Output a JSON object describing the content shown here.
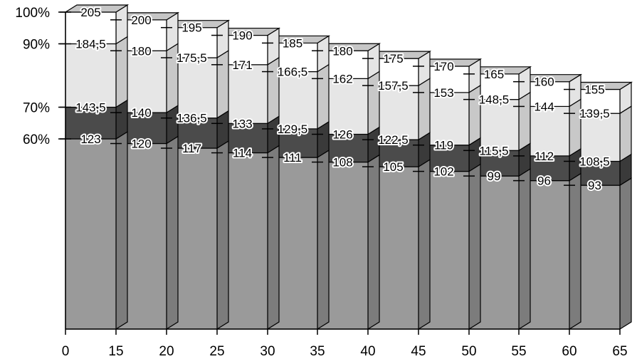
{
  "chart_data": {
    "type": "bar",
    "stacked": true,
    "three_d": true,
    "x_ticks": [
      "0",
      "15",
      "20",
      "25",
      "30",
      "35",
      "40",
      "45",
      "50",
      "55",
      "60",
      "65"
    ],
    "y_ticks": [
      {
        "value": 100,
        "label": "100%"
      },
      {
        "value": 90,
        "label": "90%"
      },
      {
        "value": 70,
        "label": "70%"
      },
      {
        "value": 60,
        "label": "60%"
      }
    ],
    "ylim": [
      0,
      205
    ],
    "categories": [
      "0-15",
      "15-20",
      "20-25",
      "25-30",
      "30-35",
      "35-40",
      "40-45",
      "45-50",
      "50-55",
      "55-60",
      "60-65"
    ],
    "bands": [
      {
        "color": "#9a9a9a",
        "side_color": "#7c7c7c"
      },
      {
        "color": "#4b4b4b",
        "side_color": "#3a3a3a"
      },
      {
        "color": "#e6e6e6",
        "side_color": "#c8c8c8"
      },
      {
        "color": "#ffffff",
        "side_color": "#e4e4e4"
      }
    ],
    "top_color": "#c6c6c6",
    "values": [
      {
        "levels": [
          123,
          143.5,
          184.5,
          205
        ],
        "labels": [
          "123",
          "143,5",
          "184,5",
          "205"
        ]
      },
      {
        "levels": [
          120,
          140,
          180,
          200
        ],
        "labels": [
          "120",
          "140",
          "180",
          "200"
        ]
      },
      {
        "levels": [
          117,
          136.5,
          175.5,
          195
        ],
        "labels": [
          "117",
          "136,5",
          "175,5",
          "195"
        ]
      },
      {
        "levels": [
          114,
          133,
          171,
          190
        ],
        "labels": [
          "114",
          "133",
          "171",
          "190"
        ]
      },
      {
        "levels": [
          111,
          129.5,
          166.5,
          185
        ],
        "labels": [
          "111",
          "129,5",
          "166,5",
          "185"
        ]
      },
      {
        "levels": [
          108,
          126,
          162,
          180
        ],
        "labels": [
          "108",
          "126",
          "162",
          "180"
        ]
      },
      {
        "levels": [
          105,
          122.5,
          157.5,
          175
        ],
        "labels": [
          "105",
          "122,5",
          "157,5",
          "175"
        ]
      },
      {
        "levels": [
          102,
          119,
          153,
          170
        ],
        "labels": [
          "102",
          "119",
          "153",
          "170"
        ]
      },
      {
        "levels": [
          99,
          115.5,
          148.5,
          165
        ],
        "labels": [
          "99",
          "115,5",
          "148,5",
          "165"
        ]
      },
      {
        "levels": [
          96,
          112,
          144,
          160
        ],
        "labels": [
          "96",
          "112",
          "144",
          "160"
        ]
      },
      {
        "levels": [
          93,
          108.5,
          139.5,
          155
        ],
        "labels": [
          "93",
          "108,5",
          "139,5",
          "155"
        ]
      }
    ]
  }
}
